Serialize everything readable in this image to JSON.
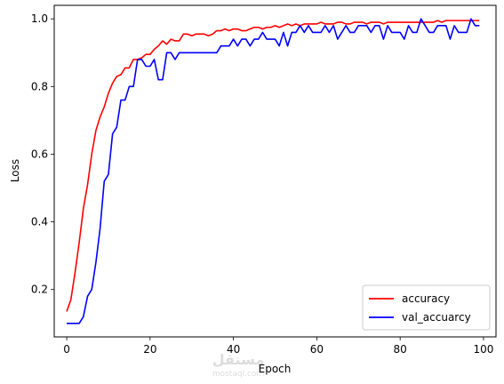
{
  "chart_data": {
    "type": "line",
    "title": "",
    "xlabel": "Epoch",
    "ylabel": "Loss",
    "xlim": [
      -3,
      103
    ],
    "ylim": [
      0.06,
      1.04
    ],
    "x_ticks": [
      0,
      20,
      40,
      60,
      80,
      100
    ],
    "y_ticks": [
      0.2,
      0.4,
      0.6,
      0.8,
      1.0
    ],
    "x_tick_labels": [
      "0",
      "20",
      "40",
      "60",
      "80",
      "100"
    ],
    "y_tick_labels": [
      "0.2",
      "0.4",
      "0.6",
      "0.8",
      "1.0"
    ],
    "legend_position": "lower-right",
    "grid": false,
    "series": [
      {
        "name": "accuracy",
        "color": "#ff0000",
        "x": [
          0,
          1,
          2,
          3,
          4,
          5,
          6,
          7,
          8,
          9,
          10,
          11,
          12,
          13,
          14,
          15,
          16,
          17,
          18,
          19,
          20,
          21,
          22,
          23,
          24,
          25,
          26,
          27,
          28,
          29,
          30,
          31,
          32,
          33,
          34,
          35,
          36,
          37,
          38,
          39,
          40,
          41,
          42,
          43,
          44,
          45,
          46,
          47,
          48,
          49,
          50,
          51,
          52,
          53,
          54,
          55,
          56,
          57,
          58,
          59,
          60,
          61,
          62,
          63,
          64,
          65,
          66,
          67,
          68,
          69,
          70,
          71,
          72,
          73,
          74,
          75,
          76,
          77,
          78,
          79,
          80,
          81,
          82,
          83,
          84,
          85,
          86,
          87,
          88,
          89,
          90,
          91,
          92,
          93,
          94,
          95,
          96,
          97,
          98,
          99
        ],
        "values": [
          0.135,
          0.17,
          0.25,
          0.34,
          0.44,
          0.51,
          0.6,
          0.67,
          0.71,
          0.74,
          0.78,
          0.81,
          0.83,
          0.835,
          0.855,
          0.855,
          0.88,
          0.88,
          0.885,
          0.895,
          0.895,
          0.91,
          0.92,
          0.935,
          0.925,
          0.94,
          0.935,
          0.935,
          0.955,
          0.955,
          0.95,
          0.955,
          0.955,
          0.955,
          0.95,
          0.955,
          0.965,
          0.965,
          0.97,
          0.965,
          0.97,
          0.97,
          0.965,
          0.965,
          0.97,
          0.975,
          0.975,
          0.97,
          0.975,
          0.975,
          0.98,
          0.975,
          0.98,
          0.985,
          0.98,
          0.985,
          0.98,
          0.985,
          0.985,
          0.985,
          0.985,
          0.99,
          0.985,
          0.985,
          0.985,
          0.99,
          0.99,
          0.985,
          0.985,
          0.99,
          0.99,
          0.99,
          0.985,
          0.99,
          0.99,
          0.99,
          0.985,
          0.99,
          0.99,
          0.99,
          0.99,
          0.99,
          0.99,
          0.99,
          0.99,
          0.99,
          0.99,
          0.99,
          0.99,
          0.995,
          0.99,
          0.995,
          0.995,
          0.995,
          0.995,
          0.995,
          0.995,
          0.995,
          0.995,
          0.995
        ]
      },
      {
        "name": "val_accuarcy",
        "color": "#0000ff",
        "x": [
          0,
          1,
          2,
          3,
          4,
          5,
          6,
          7,
          8,
          9,
          10,
          11,
          12,
          13,
          14,
          15,
          16,
          17,
          18,
          19,
          20,
          21,
          22,
          23,
          24,
          25,
          26,
          27,
          28,
          29,
          30,
          31,
          32,
          33,
          34,
          35,
          36,
          37,
          38,
          39,
          40,
          41,
          42,
          43,
          44,
          45,
          46,
          47,
          48,
          49,
          50,
          51,
          52,
          53,
          54,
          55,
          56,
          57,
          58,
          59,
          60,
          61,
          62,
          63,
          64,
          65,
          66,
          67,
          68,
          69,
          70,
          71,
          72,
          73,
          74,
          75,
          76,
          77,
          78,
          79,
          80,
          81,
          82,
          83,
          84,
          85,
          86,
          87,
          88,
          89,
          90,
          91,
          92,
          93,
          94,
          95,
          96,
          97,
          98,
          99
        ],
        "values": [
          0.1,
          0.1,
          0.1,
          0.1,
          0.12,
          0.18,
          0.2,
          0.28,
          0.38,
          0.52,
          0.54,
          0.66,
          0.68,
          0.76,
          0.76,
          0.8,
          0.8,
          0.88,
          0.88,
          0.86,
          0.86,
          0.88,
          0.82,
          0.82,
          0.9,
          0.9,
          0.88,
          0.9,
          0.9,
          0.9,
          0.9,
          0.9,
          0.9,
          0.9,
          0.9,
          0.9,
          0.9,
          0.92,
          0.92,
          0.92,
          0.94,
          0.92,
          0.94,
          0.94,
          0.92,
          0.94,
          0.94,
          0.96,
          0.94,
          0.94,
          0.94,
          0.92,
          0.96,
          0.92,
          0.96,
          0.96,
          0.98,
          0.96,
          0.98,
          0.96,
          0.96,
          0.96,
          0.98,
          0.96,
          0.98,
          0.94,
          0.96,
          0.98,
          0.96,
          0.96,
          0.98,
          0.98,
          0.98,
          0.96,
          0.98,
          0.98,
          0.94,
          0.98,
          0.96,
          0.96,
          0.96,
          0.94,
          0.98,
          0.96,
          0.96,
          1.0,
          0.98,
          0.96,
          0.96,
          0.98,
          0.98,
          0.98,
          0.94,
          0.98,
          0.96,
          0.96,
          0.96,
          1.0,
          0.98,
          0.98
        ]
      }
    ]
  },
  "watermark": {
    "text": "مستقل",
    "subtext": "mostaql.com"
  }
}
